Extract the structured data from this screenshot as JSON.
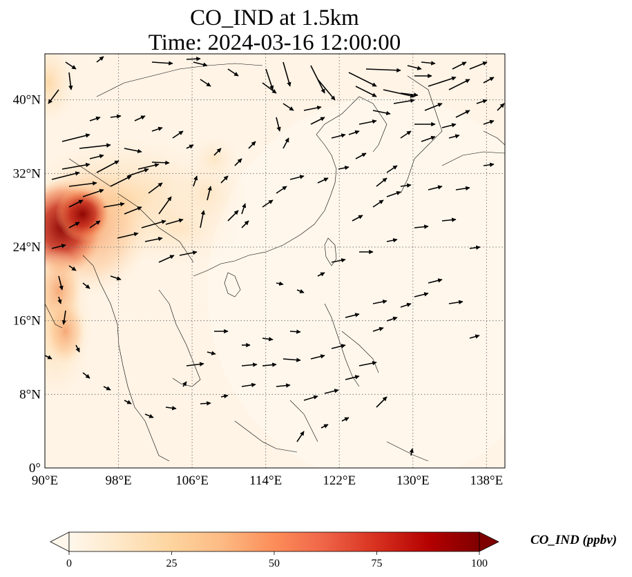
{
  "title": {
    "line1": "CO_IND at 1.5km",
    "line2": "Time: 2024-03-16 12:00:00"
  },
  "map": {
    "projection": "PlateCarree",
    "lon_range": [
      90,
      140
    ],
    "lat_range": [
      0,
      45
    ],
    "gridlines": "dotted",
    "lon_ticks": [
      {
        "value": 90,
        "label": "90°E"
      },
      {
        "value": 98,
        "label": "98°E"
      },
      {
        "value": 106,
        "label": "106°E"
      },
      {
        "value": 114,
        "label": "114°E"
      },
      {
        "value": 122,
        "label": "122°E"
      },
      {
        "value": 130,
        "label": "130°E"
      },
      {
        "value": 138,
        "label": "138°E"
      }
    ],
    "lat_ticks": [
      {
        "value": 0,
        "label": "0°"
      },
      {
        "value": 8,
        "label": "8°N"
      },
      {
        "value": 16,
        "label": "16°N"
      },
      {
        "value": 24,
        "label": "24°N"
      },
      {
        "value": 32,
        "label": "32°N"
      },
      {
        "value": 40,
        "label": "40°N"
      }
    ],
    "field": "CO_IND",
    "high_concentration_region": "Myanmar / northeast India / southwest China",
    "wind_vectors": "black arrows"
  },
  "colorbar": {
    "label": "CO_IND (ppbv)",
    "min": 0,
    "max": 100,
    "extend": "both",
    "colormap": "OrRd",
    "ticks": [
      "0",
      "25",
      "50",
      "75",
      "100"
    ],
    "colors": [
      "#fff7ec",
      "#fee8c8",
      "#fdd49e",
      "#fdbb84",
      "#fc8d59",
      "#ef6548",
      "#d7301f",
      "#b30000",
      "#7f0000"
    ]
  }
}
